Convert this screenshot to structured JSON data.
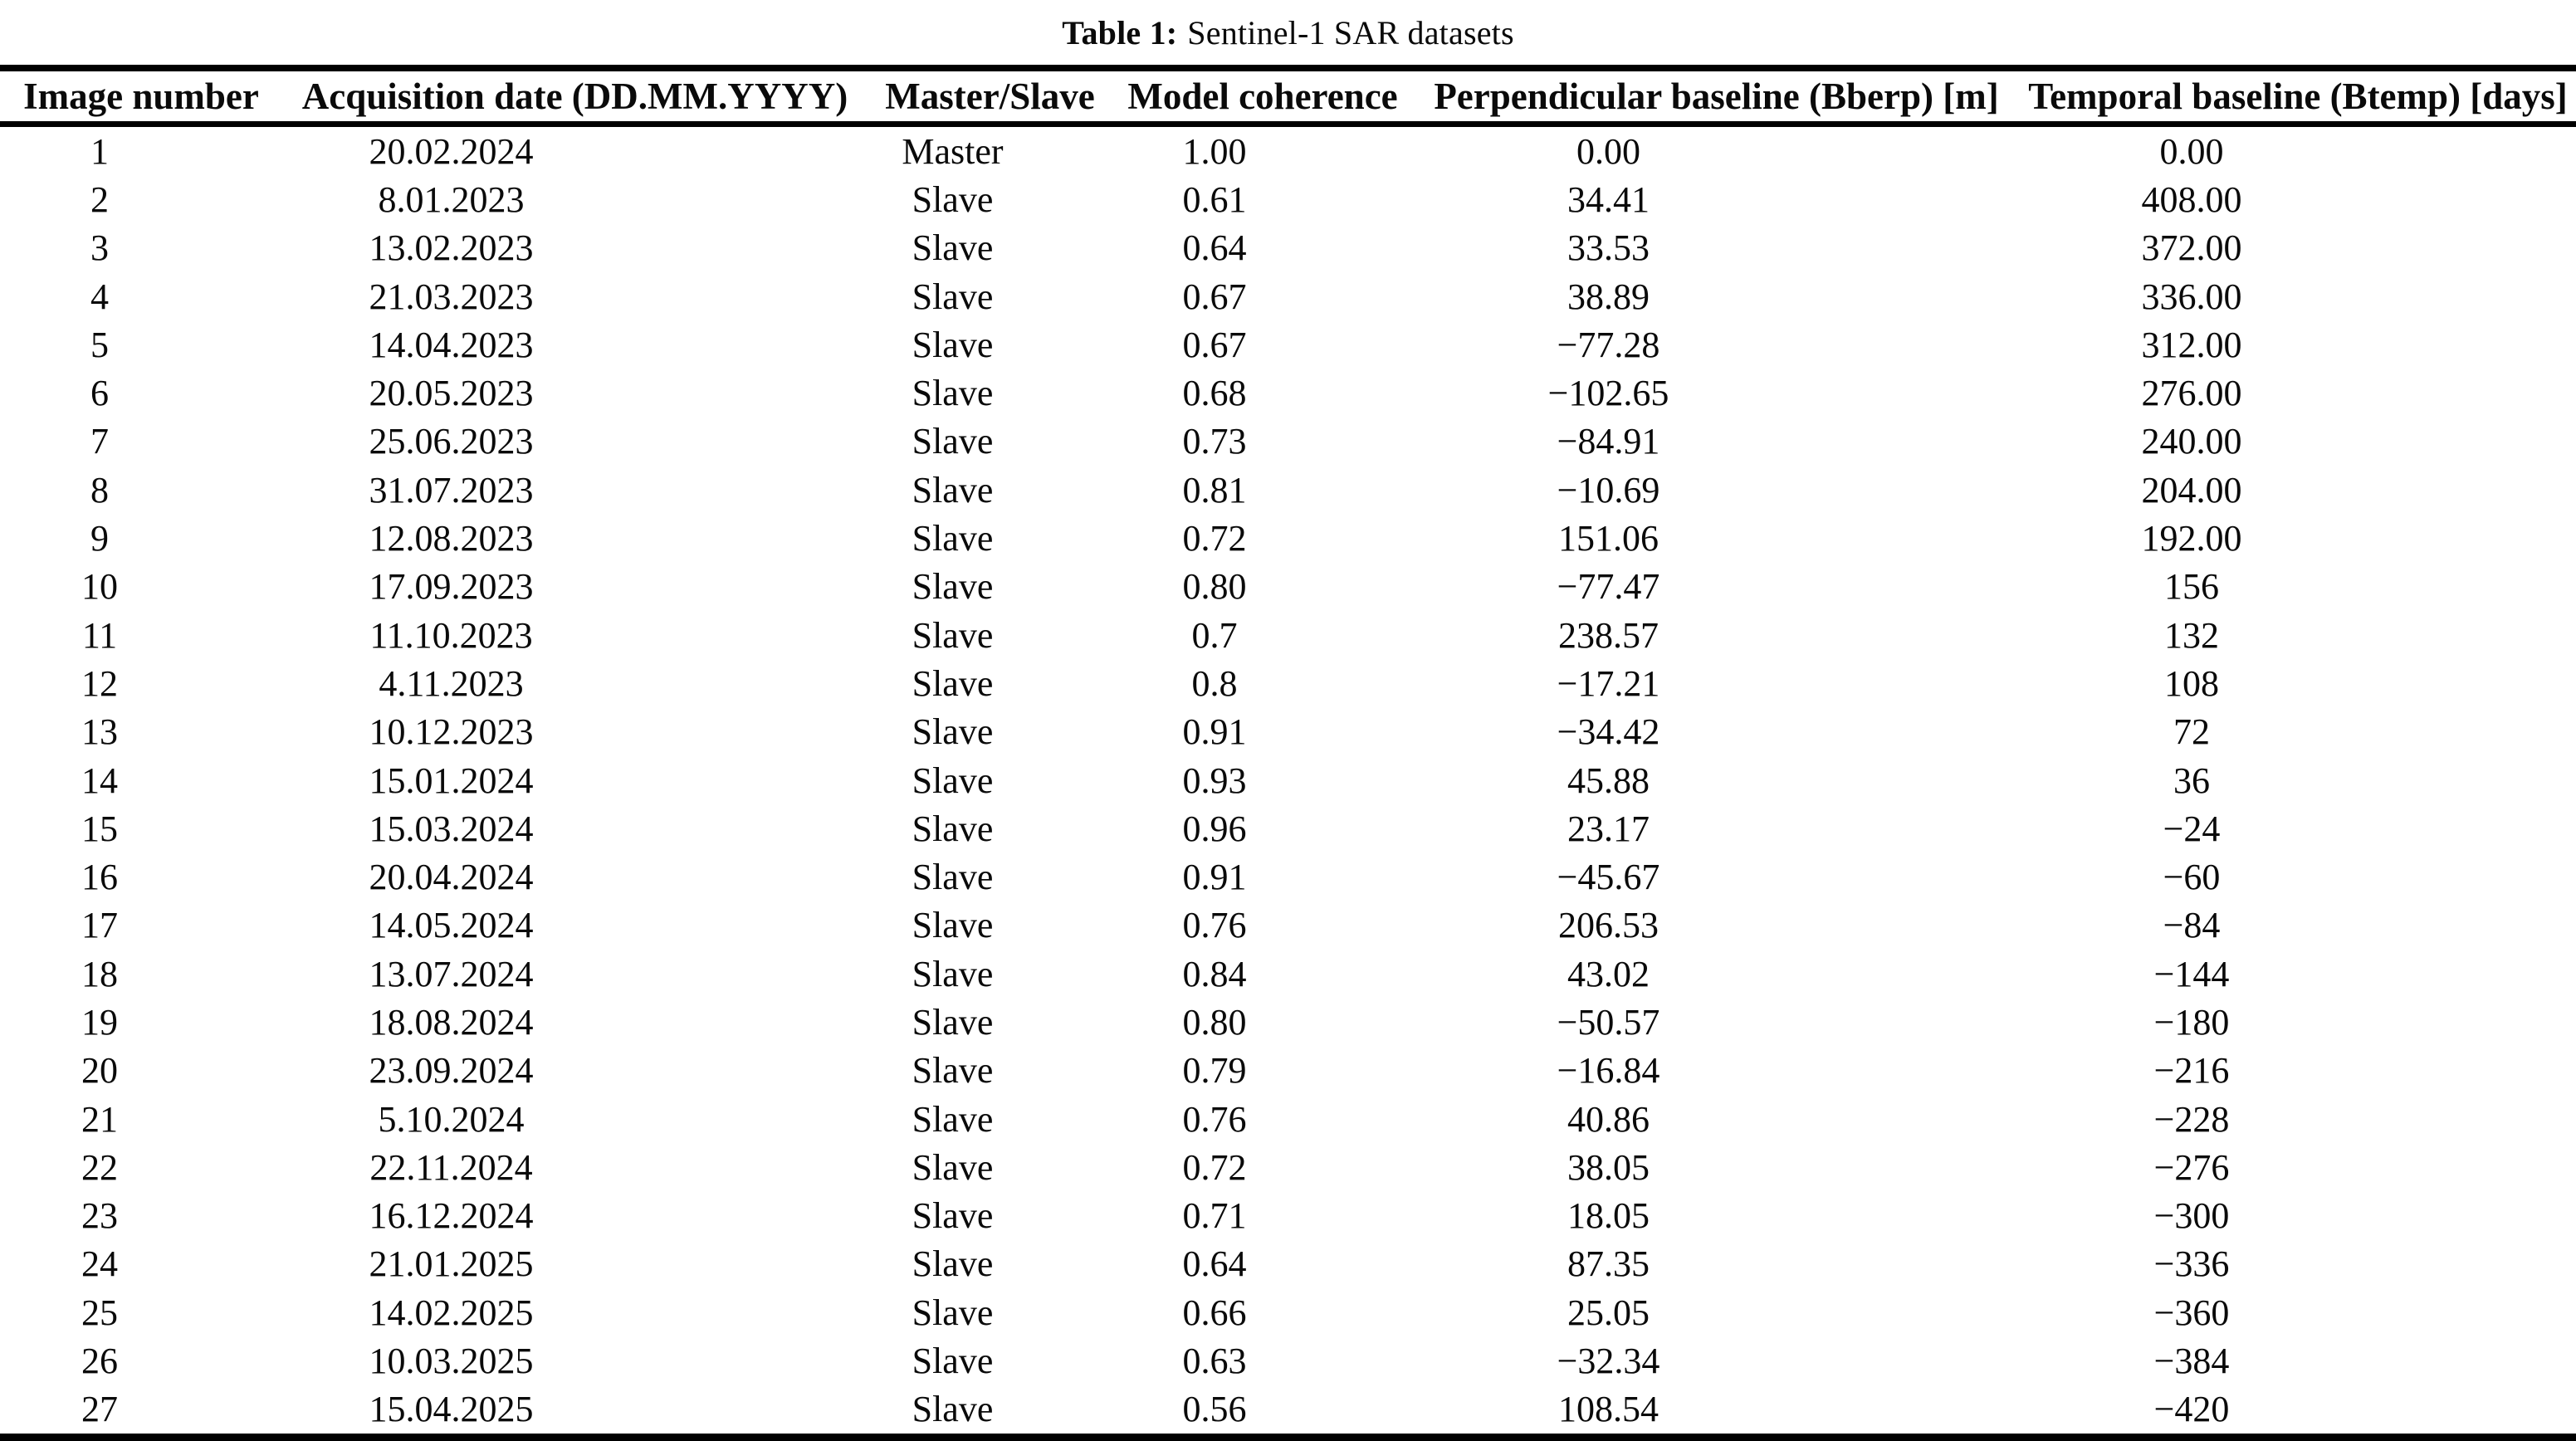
{
  "caption": {
    "label": "Table 1:",
    "text": "Sentinel-1 SAR datasets"
  },
  "table": {
    "columns": [
      "Image number",
      "Acquisition date (DD.MM.YYYY)",
      "Master/Slave",
      "Model coherence",
      "Perpendicular baseline (Bberp) [m]",
      "Temporal baseline (Btemp) [days]"
    ],
    "column_keys": [
      "image-number",
      "acquisition-date",
      "master-slave",
      "model-coherence",
      "perpendicular-baseline",
      "temporal-baseline"
    ],
    "rows": [
      [
        "1",
        "20.02.2024",
        "Master",
        "1.00",
        "0.00",
        "0.00"
      ],
      [
        "2",
        "8.01.2023",
        "Slave",
        "0.61",
        "34.41",
        "408.00"
      ],
      [
        "3",
        "13.02.2023",
        "Slave",
        "0.64",
        "33.53",
        "372.00"
      ],
      [
        "4",
        "21.03.2023",
        "Slave",
        "0.67",
        "38.89",
        "336.00"
      ],
      [
        "5",
        "14.04.2023",
        "Slave",
        "0.67",
        "−77.28",
        "312.00"
      ],
      [
        "6",
        "20.05.2023",
        "Slave",
        "0.68",
        "−102.65",
        "276.00"
      ],
      [
        "7",
        "25.06.2023",
        "Slave",
        "0.73",
        "−84.91",
        "240.00"
      ],
      [
        "8",
        "31.07.2023",
        "Slave",
        "0.81",
        "−10.69",
        "204.00"
      ],
      [
        "9",
        "12.08.2023",
        "Slave",
        "0.72",
        "151.06",
        "192.00"
      ],
      [
        "10",
        "17.09.2023",
        "Slave",
        "0.80",
        "−77.47",
        "156"
      ],
      [
        "11",
        "11.10.2023",
        "Slave",
        "0.7",
        "238.57",
        "132"
      ],
      [
        "12",
        "4.11.2023",
        "Slave",
        "0.8",
        "−17.21",
        "108"
      ],
      [
        "13",
        "10.12.2023",
        "Slave",
        "0.91",
        "−34.42",
        "72"
      ],
      [
        "14",
        "15.01.2024",
        "Slave",
        "0.93",
        "45.88",
        "36"
      ],
      [
        "15",
        "15.03.2024",
        "Slave",
        "0.96",
        "23.17",
        "−24"
      ],
      [
        "16",
        "20.04.2024",
        "Slave",
        "0.91",
        "−45.67",
        "−60"
      ],
      [
        "17",
        "14.05.2024",
        "Slave",
        "0.76",
        "206.53",
        "−84"
      ],
      [
        "18",
        "13.07.2024",
        "Slave",
        "0.84",
        "43.02",
        "−144"
      ],
      [
        "19",
        "18.08.2024",
        "Slave",
        "0.80",
        "−50.57",
        "−180"
      ],
      [
        "20",
        "23.09.2024",
        "Slave",
        "0.79",
        "−16.84",
        "−216"
      ],
      [
        "21",
        "5.10.2024",
        "Slave",
        "0.76",
        "40.86",
        "−228"
      ],
      [
        "22",
        "22.11.2024",
        "Slave",
        "0.72",
        "38.05",
        "−276"
      ],
      [
        "23",
        "16.12.2024",
        "Slave",
        "0.71",
        "18.05",
        "−300"
      ],
      [
        "24",
        "21.01.2025",
        "Slave",
        "0.64",
        "87.35",
        "−336"
      ],
      [
        "25",
        "14.02.2025",
        "Slave",
        "0.66",
        "25.05",
        "−360"
      ],
      [
        "26",
        "10.03.2025",
        "Slave",
        "0.63",
        "−32.34",
        "−384"
      ],
      [
        "27",
        "15.04.2025",
        "Slave",
        "0.56",
        "108.54",
        "−420"
      ]
    ]
  }
}
